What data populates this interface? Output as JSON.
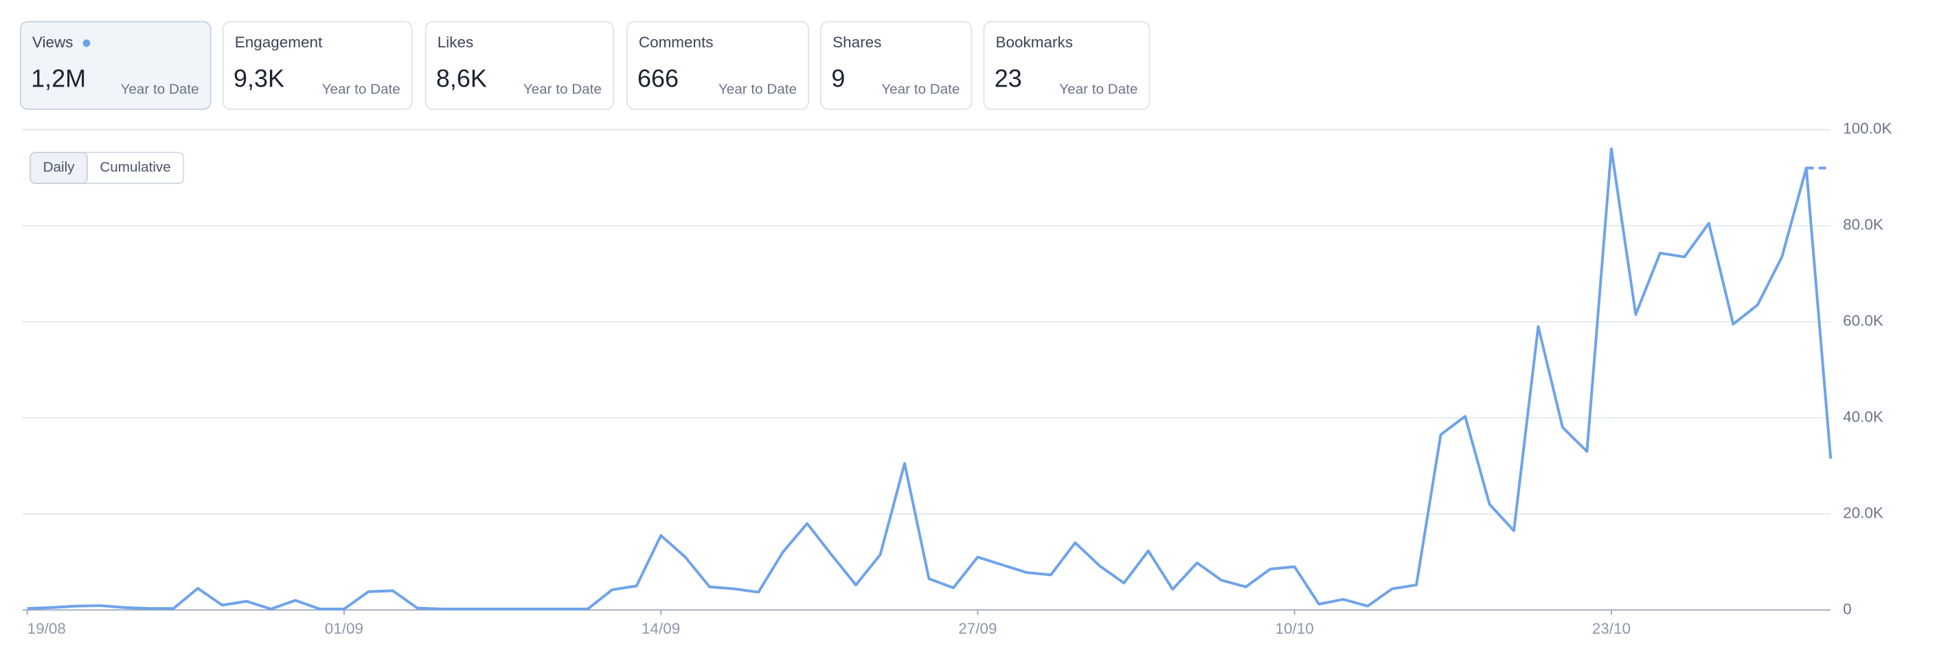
{
  "metrics": [
    {
      "label": "Views",
      "value": "1,2M",
      "period": "Year to Date"
    },
    {
      "label": "Engagement",
      "value": "9,3K",
      "period": "Year to Date"
    },
    {
      "label": "Likes",
      "value": "8,6K",
      "period": "Year to Date"
    },
    {
      "label": "Comments",
      "value": "666",
      "period": "Year to Date"
    },
    {
      "label": "Shares",
      "value": "9",
      "period": "Year to Date"
    },
    {
      "label": "Bookmarks",
      "value": "23",
      "period": "Year to Date"
    }
  ],
  "toggle": [
    "Daily",
    "Cumulative"
  ],
  "chart_data": {
    "type": "line",
    "categories": [
      "19/08",
      null,
      null,
      null,
      null,
      null,
      null,
      null,
      null,
      null,
      null,
      null,
      null,
      "01/09",
      null,
      null,
      null,
      null,
      null,
      null,
      null,
      null,
      null,
      null,
      null,
      null,
      "14/09",
      null,
      null,
      null,
      null,
      null,
      null,
      null,
      null,
      null,
      null,
      null,
      null,
      "27/09",
      null,
      null,
      null,
      null,
      null,
      null,
      null,
      null,
      null,
      null,
      null,
      null,
      "10/10",
      null,
      null,
      null,
      null,
      null,
      null,
      null,
      null,
      null,
      null,
      null,
      null,
      "23/10",
      null,
      null,
      null,
      null,
      null,
      null,
      null,
      null,
      null
    ],
    "series": [
      {
        "name": "Views",
        "color": "#6ea3ea",
        "values": [
          300,
          500,
          800,
          900,
          500,
          300,
          300,
          4500,
          1000,
          1800,
          200,
          2000,
          200,
          200,
          3800,
          4000,
          400,
          200,
          200,
          200,
          200,
          200,
          200,
          200,
          4200,
          5000,
          15500,
          11000,
          4800,
          4400,
          3700,
          12000,
          18000,
          11500,
          5200,
          11500,
          30500,
          6500,
          4600,
          11000,
          9400,
          7800,
          7300,
          14000,
          9200,
          5600,
          12300,
          4300,
          9800,
          6200,
          4800,
          8500,
          9000,
          1200,
          2200,
          800,
          4400,
          5200,
          36500,
          40300,
          22000,
          16500,
          59000,
          38000,
          33000,
          96000,
          61500,
          74300,
          73500,
          80500,
          59500,
          63500,
          73500,
          92000,
          31500
        ]
      }
    ],
    "ylim": [
      0,
      100000
    ],
    "yticks": [
      0,
      {
        "value": 20000,
        "label": "20.0K"
      },
      {
        "value": 40000,
        "label": "40.0K"
      },
      {
        "value": 60000,
        "label": "60.0K"
      },
      {
        "value": 80000,
        "label": "80.0K"
      },
      {
        "value": 100000,
        "label": "100.0K"
      }
    ],
    "grid": true
  }
}
